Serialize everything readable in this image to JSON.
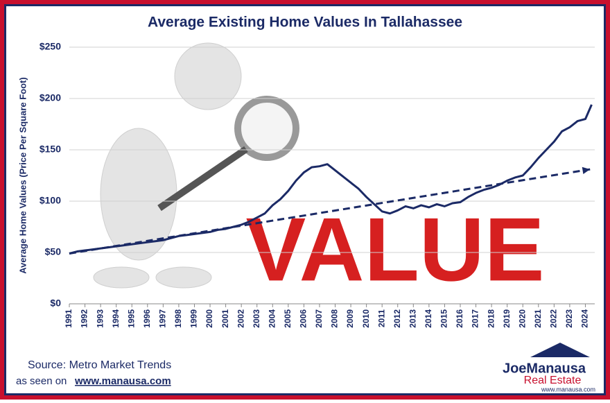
{
  "chart_data": {
    "type": "line",
    "title": "Average Existing Home Values In Tallahassee",
    "y_label": "Average Home Values (Price Per Square Foot)",
    "background_text": "VALUE",
    "source": "Source: Metro Market Trends",
    "seen_on": "as seen on",
    "seen_on_url": "www.manausa.com",
    "logo": {
      "name": "JoeManausa",
      "sub": "Real Estate",
      "url": "www.manausa.com"
    },
    "x": [
      1991,
      1991.5,
      1992,
      1992.5,
      1993,
      1993.5,
      1994,
      1994.5,
      1995,
      1995.5,
      1996,
      1996.5,
      1997,
      1997.5,
      1998,
      1998.5,
      1999,
      1999.5,
      2000,
      2000.5,
      2001,
      2001.5,
      2002,
      2002.5,
      2003,
      2003.5,
      2004,
      2004.5,
      2005,
      2005.5,
      2006,
      2006.5,
      2007,
      2007.5,
      2008,
      2008.5,
      2009,
      2009.5,
      2010,
      2010.5,
      2011,
      2011.5,
      2012,
      2012.5,
      2013,
      2013.5,
      2014,
      2014.5,
      2015,
      2015.5,
      2016,
      2016.5,
      2017,
      2017.5,
      2018,
      2018.5,
      2019,
      2019.5,
      2020,
      2020.5,
      2021,
      2021.5,
      2022,
      2022.5,
      2023,
      2023.5,
      2024,
      2024.4
    ],
    "series": [
      {
        "color": "#1b2a66",
        "values": [
          49,
          51,
          52,
          53,
          54,
          55,
          56,
          57,
          58,
          59,
          60,
          61,
          62,
          64,
          66,
          67,
          68,
          69,
          70,
          72,
          73,
          75,
          77,
          80,
          84,
          88,
          96,
          102,
          110,
          120,
          128,
          133,
          134,
          136,
          130,
          124,
          118,
          112,
          104,
          97,
          90,
          88,
          91,
          95,
          93,
          96,
          94,
          97,
          95,
          98,
          99,
          104,
          108,
          111,
          113,
          116,
          120,
          123,
          125,
          133,
          142,
          150,
          158,
          168,
          172,
          178,
          180,
          194
        ]
      }
    ],
    "trend": {
      "color": "#1b2a66",
      "x": [
        1991,
        2024.3
      ],
      "values": [
        49,
        131
      ]
    },
    "xlim": [
      1991,
      2024.6
    ],
    "xticks": [
      1991,
      1992,
      1993,
      1994,
      1995,
      1996,
      1997,
      1998,
      1999,
      2000,
      2001,
      2002,
      2003,
      2004,
      2005,
      2006,
      2007,
      2008,
      2009,
      2010,
      2011,
      2012,
      2013,
      2014,
      2015,
      2016,
      2017,
      2018,
      2019,
      2020,
      2021,
      2022,
      2023,
      2024
    ],
    "ylim": [
      0,
      250
    ],
    "yticks": [
      {
        "value": 0,
        "label": "$0"
      },
      {
        "value": 50,
        "label": "$50"
      },
      {
        "value": 100,
        "label": "$100"
      },
      {
        "value": 150,
        "label": "$150"
      },
      {
        "value": 200,
        "label": "$200"
      },
      {
        "value": 250,
        "label": "$250"
      }
    ],
    "grid": true
  }
}
